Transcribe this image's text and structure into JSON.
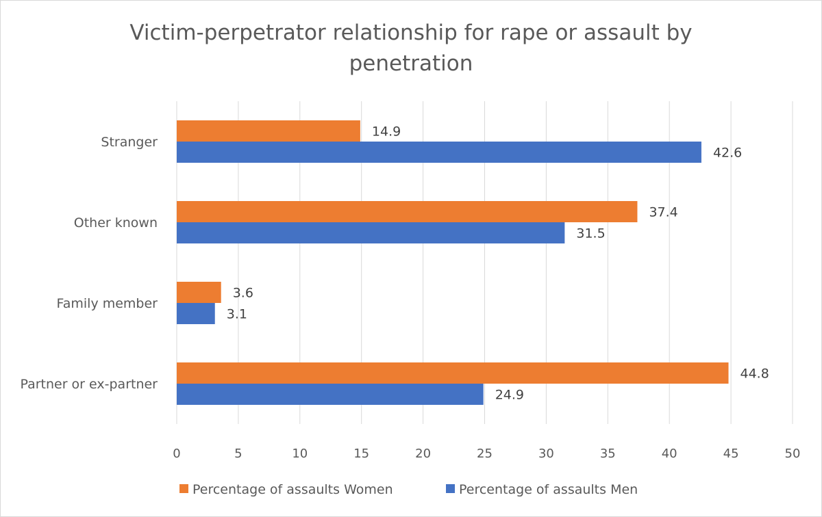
{
  "chart_data": {
    "type": "bar",
    "orientation": "horizontal",
    "title": "Victim-perpetrator relationship for rape or assault by penetration",
    "title_lines": [
      "Victim-perpetrator relationship for rape or assault by",
      "penetration"
    ],
    "categories": [
      "Stranger",
      "Other known",
      "Family member",
      "Partner or ex-partner"
    ],
    "series": [
      {
        "name": "Percentage of assaults  Women",
        "color": "#ED7D31",
        "values": [
          14.9,
          37.4,
          3.6,
          44.8
        ]
      },
      {
        "name": "Percentage of assaults  Men",
        "color": "#4472C4",
        "values": [
          42.6,
          31.5,
          3.1,
          24.9
        ]
      }
    ],
    "xlim": [
      0,
      50
    ],
    "x_ticks": [
      0,
      5,
      10,
      15,
      20,
      25,
      30,
      35,
      40,
      45,
      50
    ],
    "grid": true,
    "legend": "bottom",
    "data_labels": true
  }
}
